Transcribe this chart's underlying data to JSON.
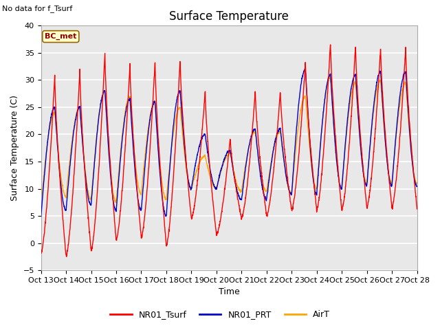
{
  "title": "Surface Temperature",
  "xlabel": "Time",
  "ylabel": "Surface Temperature (C)",
  "ylim": [
    -5,
    40
  ],
  "background_text": "No data for f_Tsurf",
  "bc_met_label": "BC_met",
  "legend_labels": [
    "NR01_Tsurf",
    "NR01_PRT",
    "AirT"
  ],
  "line_colors": [
    "#FF0000",
    "#0000CC",
    "#FFA500"
  ],
  "xtick_labels": [
    "Oct 13",
    "Oct 14",
    "Oct 15",
    "Oct 16",
    "Oct 17",
    "Oct 18",
    "Oct 19",
    "Oct 20",
    "Oct 21",
    "Oct 22",
    "Oct 23",
    "Oct 24",
    "Oct 25",
    "Oct 26",
    "Oct 27",
    "Oct 28"
  ],
  "plot_bg_color": "#E8E8E8",
  "fig_bg_color": "#FFFFFF",
  "title_fontsize": 12,
  "axis_fontsize": 9,
  "tick_fontsize": 8,
  "yticks": [
    -5,
    0,
    5,
    10,
    15,
    20,
    25,
    30,
    35,
    40
  ]
}
